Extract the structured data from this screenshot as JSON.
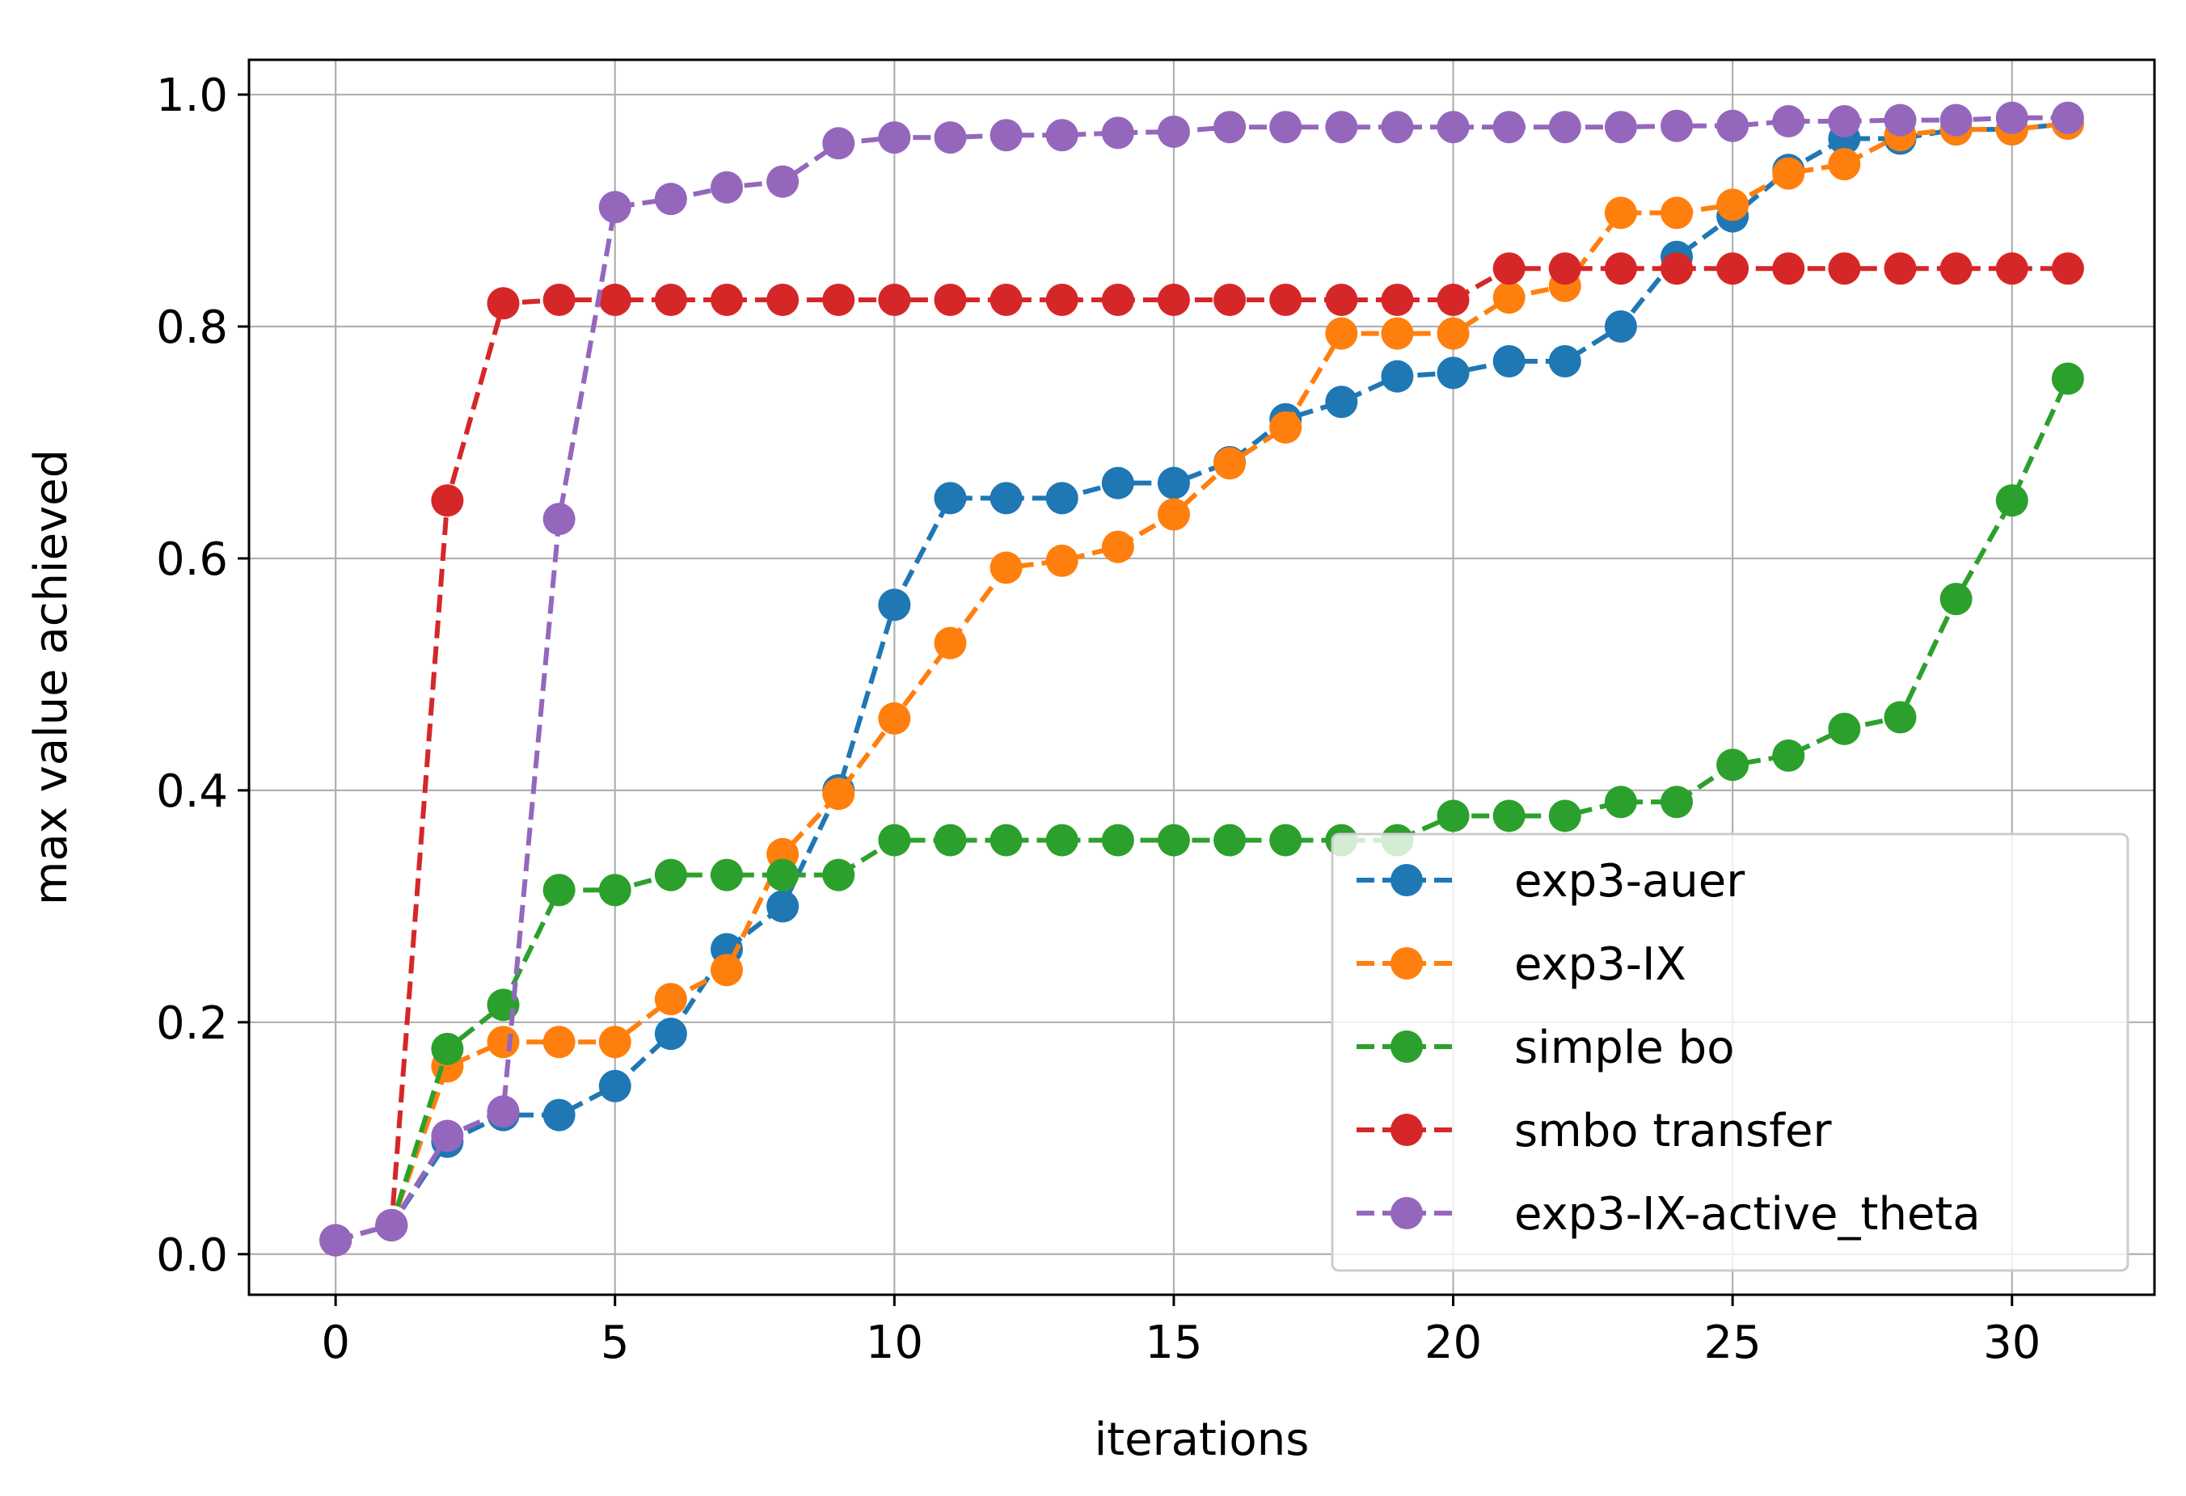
{
  "chart_data": {
    "type": "line",
    "title": "",
    "xlabel": "iterations",
    "ylabel": "max value achieved",
    "xlim": [
      -1.55,
      32.55
    ],
    "ylim": [
      -0.035,
      1.03
    ],
    "xticks": [
      0,
      5,
      10,
      15,
      20,
      25,
      30
    ],
    "xtick_labels": [
      "0",
      "5",
      "10",
      "15",
      "20",
      "25",
      "30"
    ],
    "yticks": [
      0.0,
      0.2,
      0.4,
      0.6,
      0.8,
      1.0
    ],
    "ytick_labels": [
      "0.0",
      "0.2",
      "0.4",
      "0.6",
      "0.8",
      "1.0"
    ],
    "grid": true,
    "legend_position": "lower-right",
    "line_style": "dashed",
    "marker": "circle",
    "x": [
      0,
      1,
      2,
      3,
      4,
      5,
      6,
      7,
      8,
      9,
      10,
      11,
      12,
      13,
      14,
      15,
      16,
      17,
      18,
      19,
      20,
      21,
      22,
      23,
      24,
      25,
      26,
      27,
      28,
      29,
      30,
      31
    ],
    "series": [
      {
        "name": "exp3-auer",
        "color": "#1f77b4",
        "values": [
          0.012,
          0.025,
          0.097,
          0.12,
          0.12,
          0.145,
          0.19,
          0.263,
          0.3,
          0.4,
          0.56,
          0.652,
          0.652,
          0.652,
          0.665,
          0.665,
          0.683,
          0.72,
          0.735,
          0.757,
          0.76,
          0.77,
          0.77,
          0.8,
          0.86,
          0.895,
          0.935,
          0.962,
          0.962,
          0.97,
          0.97,
          0.975
        ]
      },
      {
        "name": "exp3-IX",
        "color": "#ff7f0e",
        "values": [
          0.012,
          0.025,
          0.162,
          0.183,
          0.183,
          0.183,
          0.22,
          0.245,
          0.345,
          0.397,
          0.462,
          0.527,
          0.592,
          0.598,
          0.61,
          0.638,
          0.682,
          0.713,
          0.794,
          0.794,
          0.794,
          0.825,
          0.835,
          0.898,
          0.898,
          0.905,
          0.932,
          0.94,
          0.965,
          0.97,
          0.97,
          0.975
        ]
      },
      {
        "name": "simple bo",
        "color": "#2ca02c",
        "values": [
          0.012,
          0.025,
          0.177,
          0.215,
          0.314,
          0.314,
          0.327,
          0.327,
          0.327,
          0.327,
          0.357,
          0.357,
          0.357,
          0.357,
          0.357,
          0.357,
          0.357,
          0.357,
          0.357,
          0.357,
          0.378,
          0.378,
          0.378,
          0.39,
          0.39,
          0.422,
          0.43,
          0.453,
          0.463,
          0.565,
          0.65,
          0.755
        ]
      },
      {
        "name": "smbo transfer",
        "color": "#d62728",
        "values": [
          0.012,
          0.025,
          0.65,
          0.82,
          0.823,
          0.823,
          0.823,
          0.823,
          0.823,
          0.823,
          0.823,
          0.823,
          0.823,
          0.823,
          0.823,
          0.823,
          0.823,
          0.823,
          0.823,
          0.823,
          0.823,
          0.85,
          0.85,
          0.85,
          0.85,
          0.85,
          0.85,
          0.85,
          0.85,
          0.85,
          0.85,
          0.85
        ]
      },
      {
        "name": "exp3-IX-active_theta",
        "color": "#9467bd",
        "values": [
          0.012,
          0.025,
          0.102,
          0.123,
          0.634,
          0.903,
          0.91,
          0.92,
          0.925,
          0.958,
          0.963,
          0.963,
          0.965,
          0.965,
          0.967,
          0.968,
          0.972,
          0.972,
          0.972,
          0.972,
          0.972,
          0.972,
          0.972,
          0.972,
          0.973,
          0.973,
          0.977,
          0.977,
          0.978,
          0.978,
          0.98,
          0.98
        ]
      }
    ]
  }
}
